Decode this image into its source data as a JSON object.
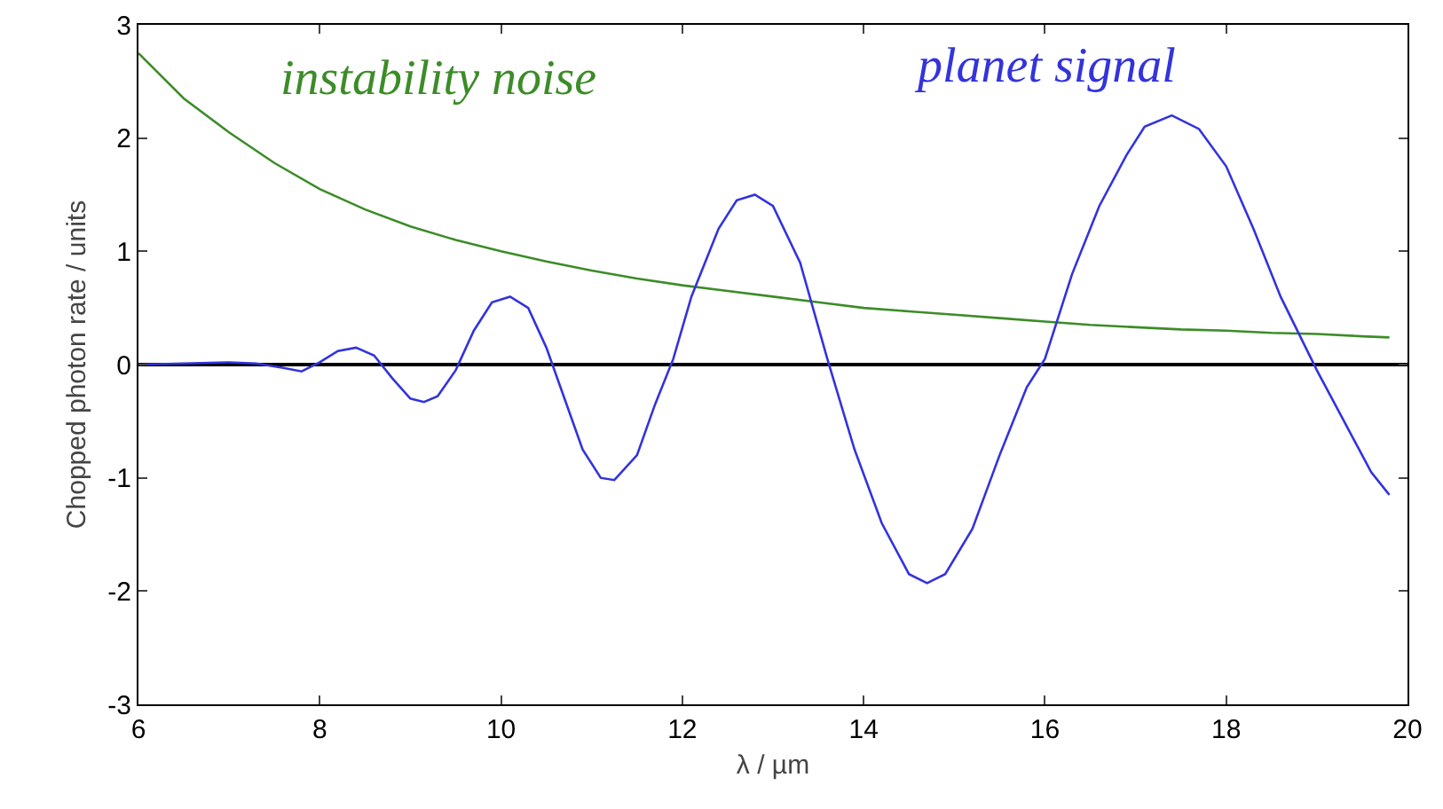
{
  "chart_data": {
    "type": "line",
    "xlabel": "λ / µm",
    "ylabel": "Chopped photon rate / units",
    "xlim": [
      6,
      20
    ],
    "xticks": [
      6,
      8,
      10,
      12,
      14,
      16,
      18,
      20
    ],
    "ylim": [
      -3,
      3
    ],
    "yticks": [
      -3,
      -2,
      -1,
      0,
      1,
      2,
      3
    ],
    "grid": false,
    "legend": false,
    "line_style": "solid",
    "marker": "none",
    "ref_lines": [
      {
        "axis": "y",
        "value": 0,
        "color": "#000000"
      }
    ],
    "series": [
      {
        "name": "instability noise",
        "color": "#3c8c28",
        "x": [
          6,
          6.5,
          7,
          7.5,
          8,
          8.5,
          9,
          9.5,
          10,
          10.5,
          11,
          11.5,
          12,
          12.5,
          13,
          13.5,
          14,
          14.5,
          15,
          15.5,
          16,
          16.5,
          17,
          17.5,
          18,
          18.5,
          19,
          19.5,
          19.8
        ],
        "values": [
          2.75,
          2.35,
          2.05,
          1.78,
          1.55,
          1.37,
          1.22,
          1.1,
          1.0,
          0.91,
          0.83,
          0.76,
          0.7,
          0.65,
          0.6,
          0.55,
          0.5,
          0.47,
          0.44,
          0.41,
          0.38,
          0.35,
          0.33,
          0.31,
          0.3,
          0.28,
          0.27,
          0.25,
          0.24
        ]
      },
      {
        "name": "planet signal",
        "color": "#3333dd",
        "x": [
          6,
          6.5,
          7,
          7.3,
          7.6,
          7.8,
          8.0,
          8.2,
          8.4,
          8.6,
          8.8,
          9.0,
          9.15,
          9.3,
          9.5,
          9.7,
          9.9,
          10.1,
          10.3,
          10.5,
          10.7,
          10.9,
          11.1,
          11.25,
          11.5,
          11.7,
          11.9,
          12.1,
          12.4,
          12.6,
          12.8,
          13.0,
          13.3,
          13.6,
          13.9,
          14.2,
          14.5,
          14.7,
          14.9,
          15.2,
          15.5,
          15.8,
          16.0,
          16.3,
          16.6,
          16.9,
          17.1,
          17.4,
          17.7,
          18.0,
          18.3,
          18.6,
          19.0,
          19.3,
          19.6,
          19.8
        ],
        "values": [
          0,
          0.01,
          0.02,
          0.01,
          -0.03,
          -0.06,
          0.02,
          0.12,
          0.15,
          0.08,
          -0.12,
          -0.3,
          -0.33,
          -0.28,
          -0.05,
          0.3,
          0.55,
          0.6,
          0.5,
          0.15,
          -0.3,
          -0.75,
          -1.0,
          -1.02,
          -0.8,
          -0.35,
          0.05,
          0.6,
          1.2,
          1.45,
          1.5,
          1.4,
          0.9,
          0.05,
          -0.75,
          -1.4,
          -1.85,
          -1.93,
          -1.85,
          -1.45,
          -0.8,
          -0.2,
          0.05,
          0.8,
          1.4,
          1.85,
          2.1,
          2.2,
          2.08,
          1.75,
          1.2,
          0.6,
          -0.05,
          -0.5,
          -0.95,
          -1.15
        ]
      }
    ]
  }
}
